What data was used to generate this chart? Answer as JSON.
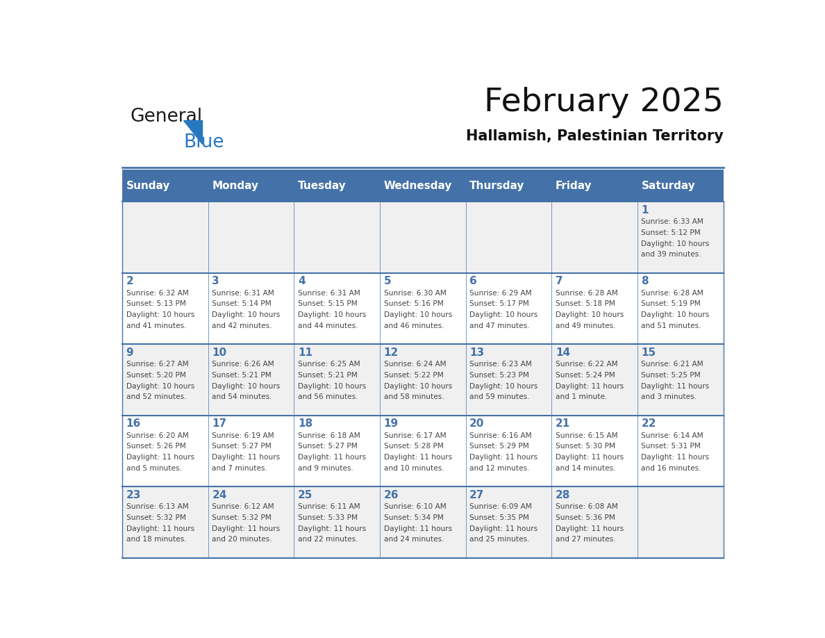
{
  "title": "February 2025",
  "subtitle": "Hallamish, Palestinian Territory",
  "header_bg_color": "#4472a8",
  "header_text_color": "#ffffff",
  "cell_bg_color_even": "#f0f0f0",
  "cell_bg_color_odd": "#ffffff",
  "grid_line_color": "#4472a8",
  "day_number_color": "#4472a8",
  "text_color": "#444444",
  "days_of_week": [
    "Sunday",
    "Monday",
    "Tuesday",
    "Wednesday",
    "Thursday",
    "Friday",
    "Saturday"
  ],
  "calendar_data": [
    [
      {
        "day": 0,
        "info": ""
      },
      {
        "day": 0,
        "info": ""
      },
      {
        "day": 0,
        "info": ""
      },
      {
        "day": 0,
        "info": ""
      },
      {
        "day": 0,
        "info": ""
      },
      {
        "day": 0,
        "info": ""
      },
      {
        "day": 1,
        "info": "Sunrise: 6:33 AM\nSunset: 5:12 PM\nDaylight: 10 hours\nand 39 minutes."
      }
    ],
    [
      {
        "day": 2,
        "info": "Sunrise: 6:32 AM\nSunset: 5:13 PM\nDaylight: 10 hours\nand 41 minutes."
      },
      {
        "day": 3,
        "info": "Sunrise: 6:31 AM\nSunset: 5:14 PM\nDaylight: 10 hours\nand 42 minutes."
      },
      {
        "day": 4,
        "info": "Sunrise: 6:31 AM\nSunset: 5:15 PM\nDaylight: 10 hours\nand 44 minutes."
      },
      {
        "day": 5,
        "info": "Sunrise: 6:30 AM\nSunset: 5:16 PM\nDaylight: 10 hours\nand 46 minutes."
      },
      {
        "day": 6,
        "info": "Sunrise: 6:29 AM\nSunset: 5:17 PM\nDaylight: 10 hours\nand 47 minutes."
      },
      {
        "day": 7,
        "info": "Sunrise: 6:28 AM\nSunset: 5:18 PM\nDaylight: 10 hours\nand 49 minutes."
      },
      {
        "day": 8,
        "info": "Sunrise: 6:28 AM\nSunset: 5:19 PM\nDaylight: 10 hours\nand 51 minutes."
      }
    ],
    [
      {
        "day": 9,
        "info": "Sunrise: 6:27 AM\nSunset: 5:20 PM\nDaylight: 10 hours\nand 52 minutes."
      },
      {
        "day": 10,
        "info": "Sunrise: 6:26 AM\nSunset: 5:21 PM\nDaylight: 10 hours\nand 54 minutes."
      },
      {
        "day": 11,
        "info": "Sunrise: 6:25 AM\nSunset: 5:21 PM\nDaylight: 10 hours\nand 56 minutes."
      },
      {
        "day": 12,
        "info": "Sunrise: 6:24 AM\nSunset: 5:22 PM\nDaylight: 10 hours\nand 58 minutes."
      },
      {
        "day": 13,
        "info": "Sunrise: 6:23 AM\nSunset: 5:23 PM\nDaylight: 10 hours\nand 59 minutes."
      },
      {
        "day": 14,
        "info": "Sunrise: 6:22 AM\nSunset: 5:24 PM\nDaylight: 11 hours\nand 1 minute."
      },
      {
        "day": 15,
        "info": "Sunrise: 6:21 AM\nSunset: 5:25 PM\nDaylight: 11 hours\nand 3 minutes."
      }
    ],
    [
      {
        "day": 16,
        "info": "Sunrise: 6:20 AM\nSunset: 5:26 PM\nDaylight: 11 hours\nand 5 minutes."
      },
      {
        "day": 17,
        "info": "Sunrise: 6:19 AM\nSunset: 5:27 PM\nDaylight: 11 hours\nand 7 minutes."
      },
      {
        "day": 18,
        "info": "Sunrise: 6:18 AM\nSunset: 5:27 PM\nDaylight: 11 hours\nand 9 minutes."
      },
      {
        "day": 19,
        "info": "Sunrise: 6:17 AM\nSunset: 5:28 PM\nDaylight: 11 hours\nand 10 minutes."
      },
      {
        "day": 20,
        "info": "Sunrise: 6:16 AM\nSunset: 5:29 PM\nDaylight: 11 hours\nand 12 minutes."
      },
      {
        "day": 21,
        "info": "Sunrise: 6:15 AM\nSunset: 5:30 PM\nDaylight: 11 hours\nand 14 minutes."
      },
      {
        "day": 22,
        "info": "Sunrise: 6:14 AM\nSunset: 5:31 PM\nDaylight: 11 hours\nand 16 minutes."
      }
    ],
    [
      {
        "day": 23,
        "info": "Sunrise: 6:13 AM\nSunset: 5:32 PM\nDaylight: 11 hours\nand 18 minutes."
      },
      {
        "day": 24,
        "info": "Sunrise: 6:12 AM\nSunset: 5:32 PM\nDaylight: 11 hours\nand 20 minutes."
      },
      {
        "day": 25,
        "info": "Sunrise: 6:11 AM\nSunset: 5:33 PM\nDaylight: 11 hours\nand 22 minutes."
      },
      {
        "day": 26,
        "info": "Sunrise: 6:10 AM\nSunset: 5:34 PM\nDaylight: 11 hours\nand 24 minutes."
      },
      {
        "day": 27,
        "info": "Sunrise: 6:09 AM\nSunset: 5:35 PM\nDaylight: 11 hours\nand 25 minutes."
      },
      {
        "day": 28,
        "info": "Sunrise: 6:08 AM\nSunset: 5:36 PM\nDaylight: 11 hours\nand 27 minutes."
      },
      {
        "day": 0,
        "info": ""
      }
    ]
  ],
  "logo_text_general": "General",
  "logo_text_blue": "Blue",
  "logo_color_general": "#1a1a1a",
  "logo_color_blue": "#2878c0",
  "logo_triangle_color": "#2878c0"
}
